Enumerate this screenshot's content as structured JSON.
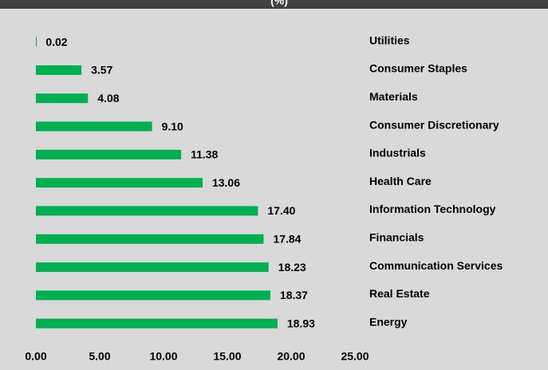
{
  "chart_data": {
    "type": "bar",
    "orientation": "horizontal",
    "title": "(%)",
    "categories": [
      "Utilities",
      "Consumer Staples",
      "Materials",
      "Consumer Discretionary",
      "Industrials",
      "Health Care",
      "Information Technology",
      "Financials",
      "Communication Services",
      "Real Estate",
      "Energy"
    ],
    "values": [
      0.02,
      3.57,
      4.08,
      9.1,
      11.38,
      13.06,
      17.4,
      17.84,
      18.23,
      18.37,
      18.93
    ],
    "value_labels": [
      "0.02",
      "3.57",
      "4.08",
      "9.10",
      "11.38",
      "13.06",
      "17.40",
      "17.84",
      "18.23",
      "18.37",
      "18.93"
    ],
    "color": "#00b050",
    "xlim": [
      0,
      25
    ],
    "xticks": [
      {
        "value": 0,
        "label": "0.00"
      },
      {
        "value": 5,
        "label": "5.00"
      },
      {
        "value": 10,
        "label": "10.00"
      },
      {
        "value": 15,
        "label": "15.00"
      },
      {
        "value": 20,
        "label": "20.00"
      },
      {
        "value": 25,
        "label": "25.00"
      }
    ],
    "grid": false
  }
}
